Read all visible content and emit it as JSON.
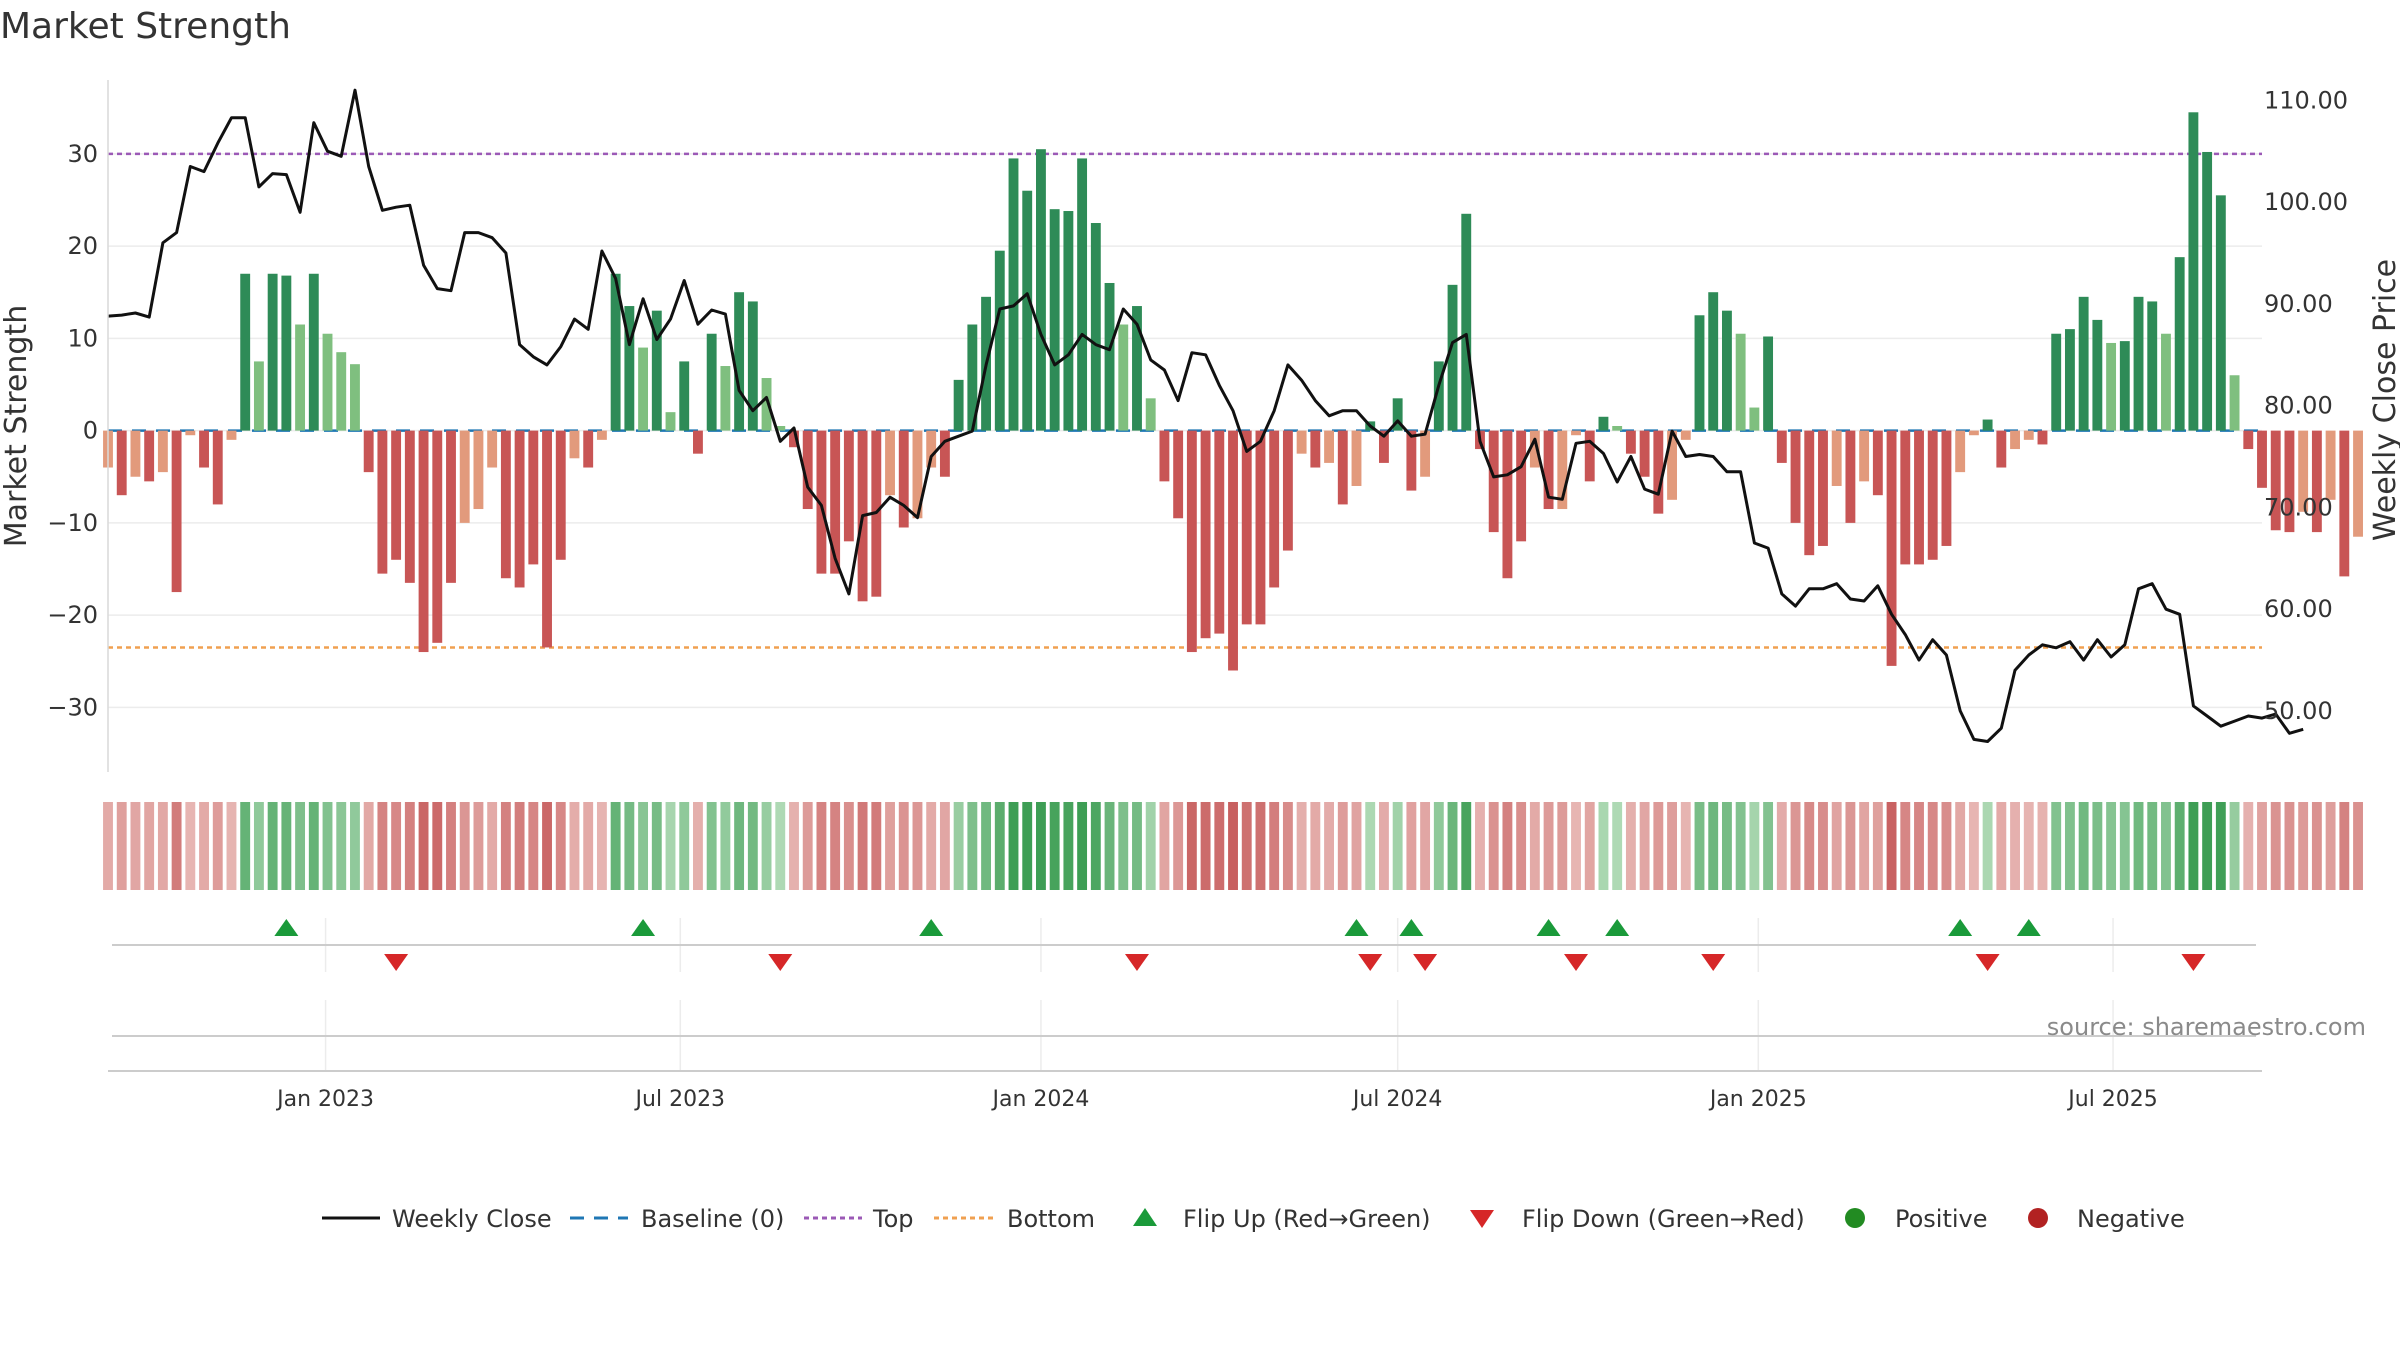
{
  "chart_data": {
    "type": "bar",
    "title": "Market Strength",
    "ylabel_left": "Market Strength",
    "ylabel_right": "Weekly Close Price",
    "ylim_left": [
      -37,
      38
    ],
    "ylim_right": [
      44,
      112
    ],
    "yticks_left": [
      30,
      20,
      10,
      0,
      -10,
      -20,
      -30
    ],
    "ytick_labels_left": [
      "30",
      "20",
      "10",
      "0",
      "−10",
      "−20",
      "−30"
    ],
    "yticks_right": [
      110,
      100,
      90,
      80,
      70,
      60,
      50
    ],
    "ytick_labels_right": [
      "110.00",
      "100.00",
      "90.00",
      "80.00",
      "70.00",
      "60.00",
      "50.00"
    ],
    "top_line": 30,
    "bottom_line": -23.5,
    "x_range": [
      "2022-09-12",
      "2025-09-15"
    ],
    "xticks": [
      {
        "date": "2023-01-01",
        "label": "Jan 2023"
      },
      {
        "date": "2023-07-01",
        "label": "Jul 2023"
      },
      {
        "date": "2024-01-01",
        "label": "Jan 2024"
      },
      {
        "date": "2024-07-01",
        "label": "Jul 2024"
      },
      {
        "date": "2025-01-01",
        "label": "Jan 2025"
      },
      {
        "date": "2025-07-01",
        "label": "Jul 2025"
      }
    ],
    "start_date": "2022-09-12",
    "weeks_per_bar": 1,
    "strength": [
      -4,
      -7,
      -5,
      -5.5,
      -4.5,
      -17.5,
      -0.5,
      -4,
      -8,
      -1,
      17,
      7.5,
      17,
      16.8,
      11.5,
      17,
      10.5,
      8.5,
      7.2,
      -4.5,
      -15.5,
      -14,
      -16.5,
      -24,
      -23,
      -16.5,
      -10,
      -8.5,
      -4,
      -16,
      -17,
      -14.5,
      -23.5,
      -14,
      -3,
      -4,
      -1,
      17,
      13.5,
      9,
      13,
      2,
      7.5,
      -2.5,
      10.5,
      7,
      15,
      14,
      5.7,
      0.5,
      -1.8,
      -8.5,
      -15.5,
      -15.5,
      -12,
      -18.5,
      -18,
      -7,
      -10.5,
      -9.5,
      -4,
      -5,
      5.5,
      11.5,
      14.5,
      19.5,
      29.5,
      26,
      30.5,
      24,
      23.8,
      29.5,
      22.5,
      16,
      11.5,
      13.5,
      3.5,
      -5.5,
      -9.5,
      -24,
      -22.5,
      -22,
      -26,
      -21,
      -21,
      -17,
      -13,
      -2.5,
      -4,
      -3.5,
      -8,
      -6,
      1,
      -3.5,
      3.5,
      -6.5,
      -5,
      7.5,
      15.8,
      23.5,
      -2,
      -11,
      -16,
      -12,
      -4,
      -8.5,
      -8.5,
      -0.5,
      -5.5,
      1.5,
      0.5,
      -2.5,
      -5,
      -9,
      -7.5,
      -1,
      12.5,
      15,
      13,
      10.5,
      2.5,
      10.2,
      -3.5,
      -10,
      -13.5,
      -12.5,
      -6,
      -10,
      -5.5,
      -7,
      -25.5,
      -14.5,
      -14.5,
      -14,
      -12.5,
      -4.5,
      -0.5,
      1.2,
      -4,
      -2,
      -1,
      -1.5,
      10.5,
      11,
      14.5,
      12,
      9.5,
      9.7,
      14.5,
      14,
      10.5,
      18.8,
      34.5,
      30.2,
      25.5,
      6,
      -2,
      -6.2,
      -10.8,
      -11,
      -8.8,
      -11,
      -7.5,
      -15.8,
      -11.5
    ],
    "weekly_close": [
      88.8,
      88.9,
      89.1,
      88.7,
      96,
      97,
      103.5,
      103,
      105.8,
      108.3,
      108.3,
      101.5,
      102.8,
      102.7,
      99,
      107.8,
      105,
      104.5,
      111,
      103.5,
      99.2,
      99.5,
      99.7,
      93.8,
      91.5,
      91.3,
      97,
      97,
      96.5,
      95,
      86,
      84.8,
      84,
      85.8,
      88.5,
      87.5,
      95.2,
      92.5,
      86,
      90.5,
      86.5,
      88.5,
      92.3,
      88,
      89.4,
      89,
      81.5,
      79.5,
      80.8,
      76.5,
      77.8,
      72,
      70.2,
      65,
      61.5,
      69.2,
      69.5,
      71,
      70.2,
      69,
      75,
      76.5,
      77,
      77.5,
      84,
      89.5,
      89.8,
      91,
      87,
      84,
      85,
      87,
      86,
      85.5,
      89.5,
      88,
      84.5,
      83.5,
      80.5,
      85.2,
      85,
      82,
      79.5,
      75.5,
      76.5,
      79.5,
      84,
      82.5,
      80.5,
      79,
      79.5,
      79.5,
      78,
      77,
      78.5,
      77,
      77.2,
      82,
      86.2,
      87,
      76.5,
      73,
      73.2,
      74,
      76.7,
      71,
      70.8,
      76.3,
      76.5,
      75.3,
      72.5,
      75,
      71.8,
      71.3,
      77.5,
      75,
      75.2,
      75,
      73.5,
      73.5,
      66.5,
      66,
      61.5,
      60.3,
      62,
      62,
      62.5,
      61,
      60.8,
      62.3,
      59.5,
      57.5,
      55,
      57,
      55.5,
      50,
      47.2,
      47,
      48.3,
      54,
      55.5,
      56.5,
      56.2,
      56.8,
      55,
      57,
      55.3,
      56.5,
      62,
      62.5,
      60,
      59.5,
      50.5,
      49.5,
      48.5,
      49,
      49.5,
      49.3,
      49.7,
      47.8,
      48.2
    ],
    "flip_up_dates": [
      "2022-12-12",
      "2023-06-12",
      "2023-11-06",
      "2024-06-10",
      "2024-07-08",
      "2024-09-16",
      "2024-10-21",
      "2025-04-14",
      "2025-05-19"
    ],
    "flip_down_dates": [
      "2023-02-06",
      "2023-08-21",
      "2024-02-19",
      "2024-06-17",
      "2024-07-15",
      "2024-09-30",
      "2024-12-09",
      "2025-04-28",
      "2025-08-11"
    ],
    "colors": {
      "pos_strong": "#2e8b57",
      "pos_weak": "#7fbf7f",
      "neg_strong": "#c85555",
      "neg_weak": "#e29a7c",
      "baseline": "#1f77b4",
      "top_line": "#9b59b6",
      "bottom_line": "#f0a050",
      "close_line": "#111111",
      "flip_up": "#1a9a3a",
      "flip_down": "#d62728",
      "positive_marker": "#228b22",
      "negative_marker": "#b22222"
    },
    "legend": [
      {
        "key": "close",
        "label": "Weekly Close"
      },
      {
        "key": "baseline",
        "label": "Baseline (0)"
      },
      {
        "key": "top",
        "label": "Top"
      },
      {
        "key": "bottom",
        "label": "Bottom"
      },
      {
        "key": "flip_up",
        "label": "Flip Up (Red→Green)"
      },
      {
        "key": "flip_down",
        "label": "Flip Down (Green→Red)"
      },
      {
        "key": "positive",
        "label": "Positive"
      },
      {
        "key": "negative",
        "label": "Negative"
      }
    ],
    "source": "source: sharemaestro.com"
  }
}
